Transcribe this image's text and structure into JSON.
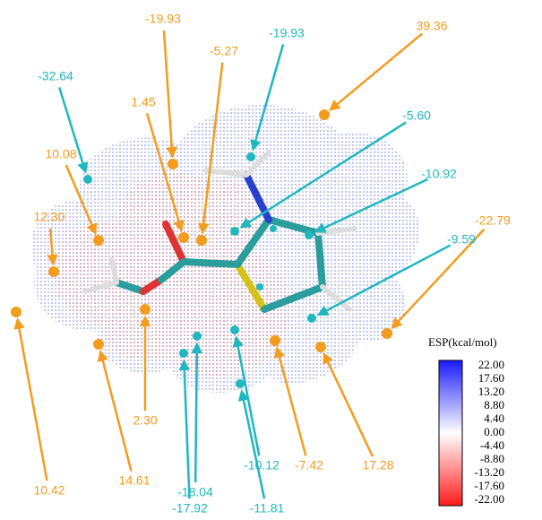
{
  "surface_maxima": [
    "-19.93",
    "-5.27",
    "39.36",
    "1.45",
    "10.08",
    "12.30",
    "-22.79",
    "2.30",
    "10.42",
    "14.61",
    "-7.42",
    "17.28"
  ],
  "surface_minima": [
    "-32.64",
    "-19.93",
    "-5.60",
    "-10.92",
    "-9.59",
    "-18.04",
    "-10.12",
    "-17.92",
    "-11.81"
  ],
  "colorbar": {
    "title": "ESP(kcal/mol)",
    "ticks": [
      "22.00",
      "17.60",
      "13.20",
      "8.80",
      "4.40",
      "0.00",
      "-4.40",
      "-8.80",
      "-13.20",
      "-17.60",
      "-22.00"
    ]
  }
}
